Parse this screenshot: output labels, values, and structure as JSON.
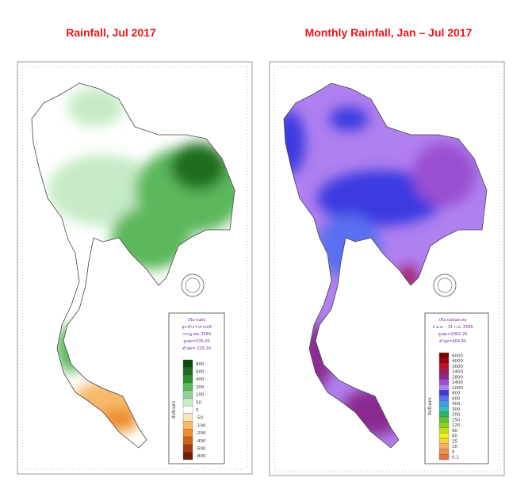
{
  "left": {
    "title": "Rainfall, Jul 2017",
    "legend_header": [
      "ปริมาณฝน",
      "สูง-ต่ำกว่าค่าปกติ",
      "กรกฎาคม 2560",
      "สูงสุด=535.00",
      "ต่ำสุด=-225.10"
    ],
    "unit": "มิลลิเมตร",
    "legend": [
      {
        "label": "800",
        "color": "#0a4a0a"
      },
      {
        "label": "600",
        "color": "#1f6e1f"
      },
      {
        "label": "400",
        "color": "#2f8f2f"
      },
      {
        "label": "200",
        "color": "#5cb85c"
      },
      {
        "label": "100",
        "color": "#8fd18f"
      },
      {
        "label": "50",
        "color": "#c6ebc6"
      },
      {
        "label": "0",
        "color": "#ffffff"
      },
      {
        "label": "-50",
        "color": "#fde3b8"
      },
      {
        "label": "-100",
        "color": "#f7b96a"
      },
      {
        "label": "-200",
        "color": "#ee8d2a"
      },
      {
        "label": "-400",
        "color": "#d0601a"
      },
      {
        "label": "-600",
        "color": "#a33a10"
      },
      {
        "label": "-800",
        "color": "#6e1e08"
      }
    ]
  },
  "right": {
    "title": "Monthly Rainfall, Jan – Jul 2017",
    "legend_header": [
      "ปริมาณฝนสะสม",
      "1 ม.ค. - 31 ก.ค. 2560",
      "สูงสุด=2062.20",
      "ต่ำสุด=464.90"
    ],
    "unit": "มิลลิเมตร",
    "legend": [
      {
        "label": "6000",
        "color": "#7a0000"
      },
      {
        "label": "4000",
        "color": "#a00010"
      },
      {
        "label": "3000",
        "color": "#c0102a"
      },
      {
        "label": "2400",
        "color": "#a01860"
      },
      {
        "label": "1800",
        "color": "#8a2a90"
      },
      {
        "label": "1400",
        "color": "#9a50d0"
      },
      {
        "label": "1000",
        "color": "#b080f0"
      },
      {
        "label": "800",
        "color": "#3a3ae0"
      },
      {
        "label": "600",
        "color": "#5a70f0"
      },
      {
        "label": "400",
        "color": "#3aa0e0"
      },
      {
        "label": "300",
        "color": "#30c0c0"
      },
      {
        "label": "200",
        "color": "#30b060"
      },
      {
        "label": "150",
        "color": "#60c030"
      },
      {
        "label": "120",
        "color": "#90d020"
      },
      {
        "label": "90",
        "color": "#c0e020"
      },
      {
        "label": "60",
        "color": "#f0f020"
      },
      {
        "label": "35",
        "color": "#f8d040"
      },
      {
        "label": "10",
        "color": "#f8b060"
      },
      {
        "label": "5",
        "color": "#f09050"
      },
      {
        "label": "0.1",
        "color": "#e07040"
      }
    ]
  }
}
